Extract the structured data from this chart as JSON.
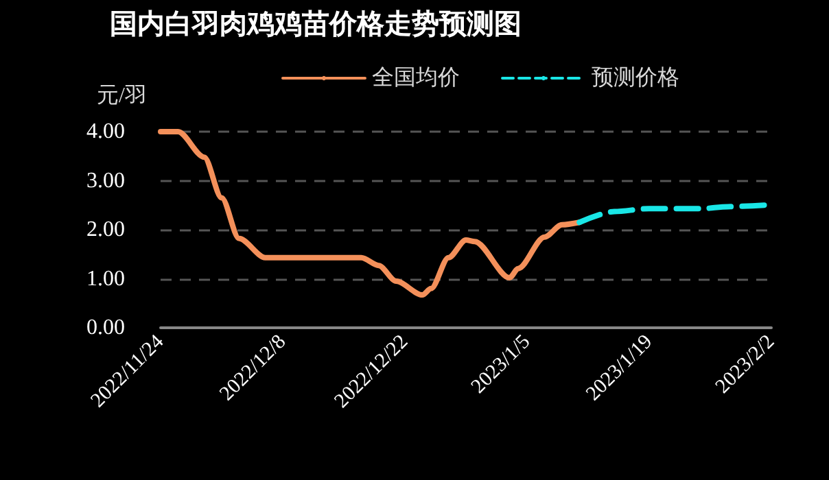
{
  "chart_data": {
    "type": "line",
    "title": "国内白羽肉鸡鸡苗价格走势预测图",
    "ylabel": "元/羽",
    "xlim": [
      "2022-11-24",
      "2023-02-02"
    ],
    "xticks": [
      {
        "value": "2022-11-24",
        "label": "2022/11/24"
      },
      {
        "value": "2022-12-08",
        "label": "2022/12/8"
      },
      {
        "value": "2022-12-22",
        "label": "2022/12/22"
      },
      {
        "value": "2023-01-05",
        "label": "2023/1/5"
      },
      {
        "value": "2023-01-19",
        "label": "2023/1/19"
      },
      {
        "value": "2023-02-02",
        "label": "2023/2/2"
      }
    ],
    "ylim": [
      0,
      4
    ],
    "yticks": [
      {
        "value": 0,
        "label": "0.00"
      },
      {
        "value": 1,
        "label": "1.00"
      },
      {
        "value": 2,
        "label": "2.00"
      },
      {
        "value": 3,
        "label": "3.00"
      },
      {
        "value": 4,
        "label": "4.00"
      }
    ],
    "grid": "y",
    "legend": "top",
    "marker": "none",
    "series": [
      {
        "name": "全国均价",
        "color": "#f4905a",
        "line_style": "solid",
        "x": [
          "2022-11-24",
          "2022-11-26",
          "2022-11-29",
          "2022-12-01",
          "2022-12-03",
          "2022-12-06",
          "2022-12-17",
          "2022-12-19",
          "2022-12-21",
          "2022-12-24",
          "2022-12-25",
          "2022-12-27",
          "2022-12-29",
          "2022-12-30",
          "2023-01-03",
          "2023-01-04",
          "2023-01-07",
          "2023-01-09",
          "2023-01-11"
        ],
        "values": [
          4.0,
          4.0,
          3.48,
          2.65,
          1.82,
          1.43,
          1.43,
          1.27,
          0.95,
          0.67,
          0.8,
          1.43,
          1.79,
          1.76,
          1.02,
          1.21,
          1.85,
          2.1,
          2.15
        ]
      },
      {
        "name": "预测价格",
        "color": "#19e6e6",
        "line_style": "dashed",
        "x": [
          "2023-01-11",
          "2023-01-15",
          "2023-01-19",
          "2023-01-25",
          "2023-01-28",
          "2023-02-02"
        ],
        "values": [
          2.15,
          2.37,
          2.43,
          2.43,
          2.47,
          2.51
        ]
      }
    ]
  }
}
